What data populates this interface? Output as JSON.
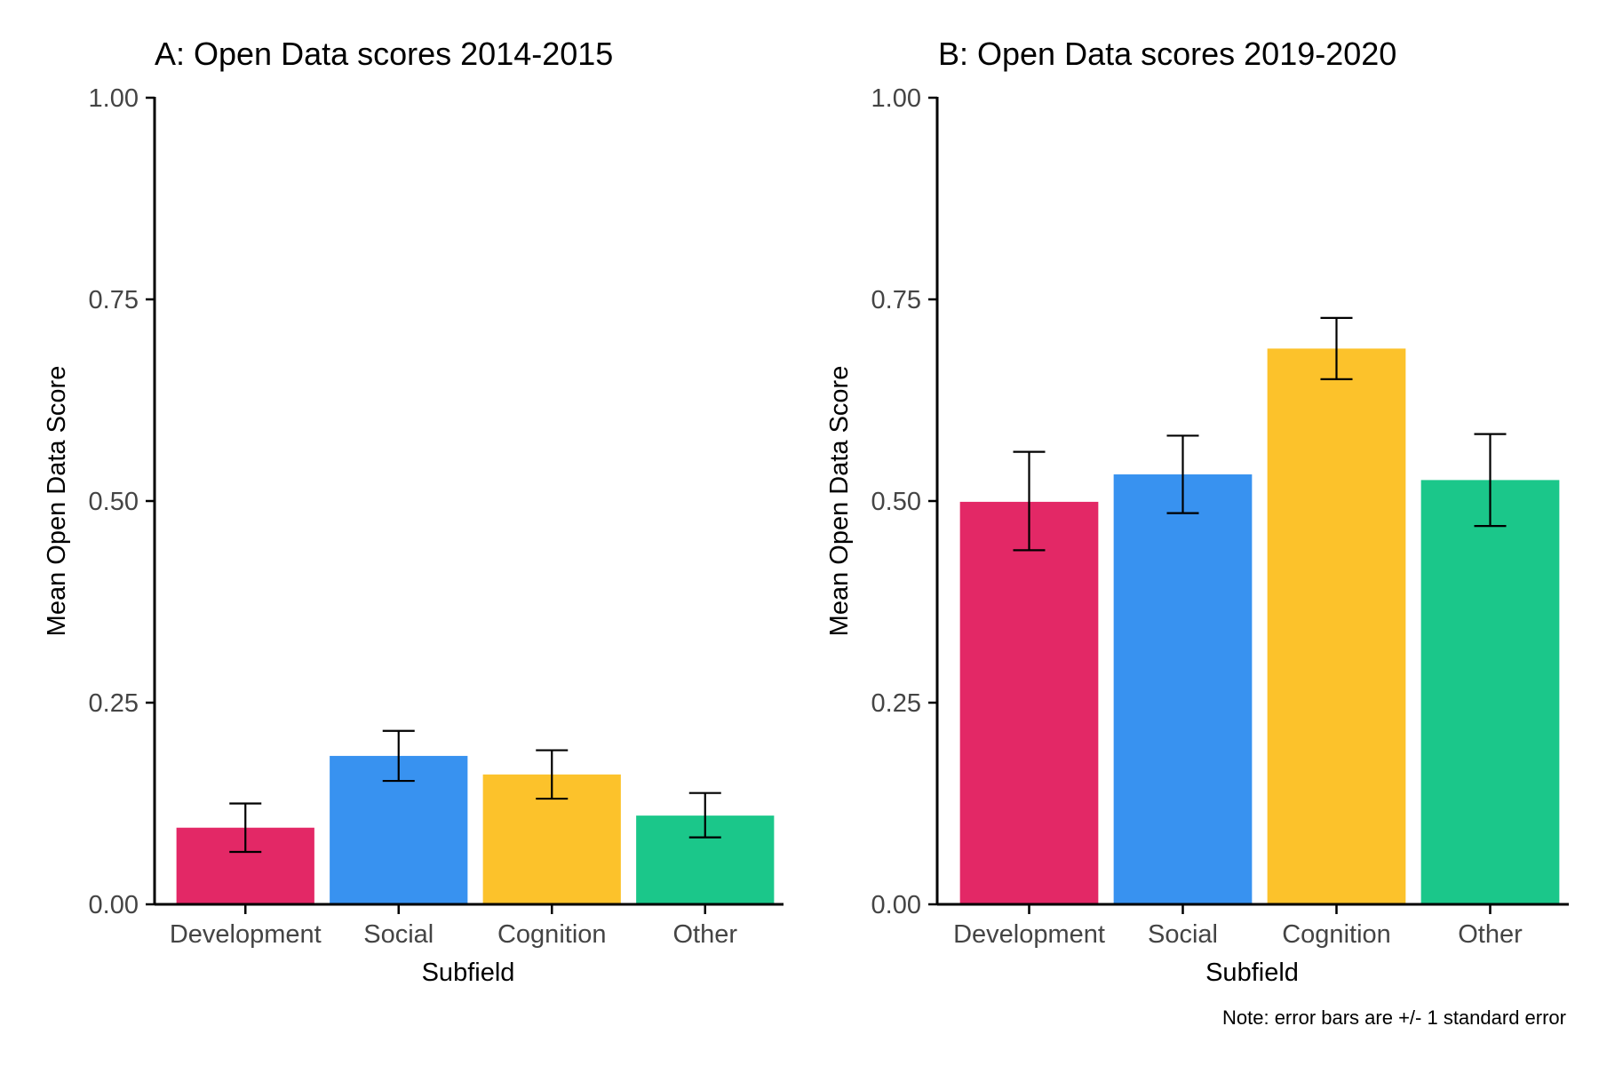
{
  "chart_data": [
    {
      "type": "bar",
      "title": "A: Open Data scores 2014-2015",
      "xlabel": "Subfield",
      "ylabel": "Mean Open Data Score",
      "categories": [
        "Development",
        "Social",
        "Cognition",
        "Other"
      ],
      "values": [
        0.095,
        0.184,
        0.161,
        0.11
      ],
      "error_low": [
        0.065,
        0.153,
        0.131,
        0.083
      ],
      "error_high": [
        0.125,
        0.215,
        0.191,
        0.138
      ],
      "ylim": [
        0,
        1
      ],
      "yticks": [
        "0.00",
        "0.25",
        "0.50",
        "0.75",
        "1.00"
      ],
      "colors": [
        "#e32866",
        "#3892f0",
        "#fcc22b",
        "#1bc78a"
      ],
      "grid": false,
      "legend": "none"
    },
    {
      "type": "bar",
      "title": "B: Open Data scores 2019-2020",
      "xlabel": "Subfield",
      "ylabel": "Mean Open Data Score",
      "categories": [
        "Development",
        "Social",
        "Cognition",
        "Other"
      ],
      "values": [
        0.499,
        0.533,
        0.689,
        0.526
      ],
      "error_low": [
        0.439,
        0.485,
        0.651,
        0.469
      ],
      "error_high": [
        0.561,
        0.581,
        0.727,
        0.583
      ],
      "ylim": [
        0,
        1
      ],
      "yticks": [
        "0.00",
        "0.25",
        "0.50",
        "0.75",
        "1.00"
      ],
      "colors": [
        "#e32866",
        "#3892f0",
        "#fcc22b",
        "#1bc78a"
      ],
      "grid": false,
      "legend": "none"
    }
  ],
  "caption": "Note: error bars are +/- 1 standard error"
}
